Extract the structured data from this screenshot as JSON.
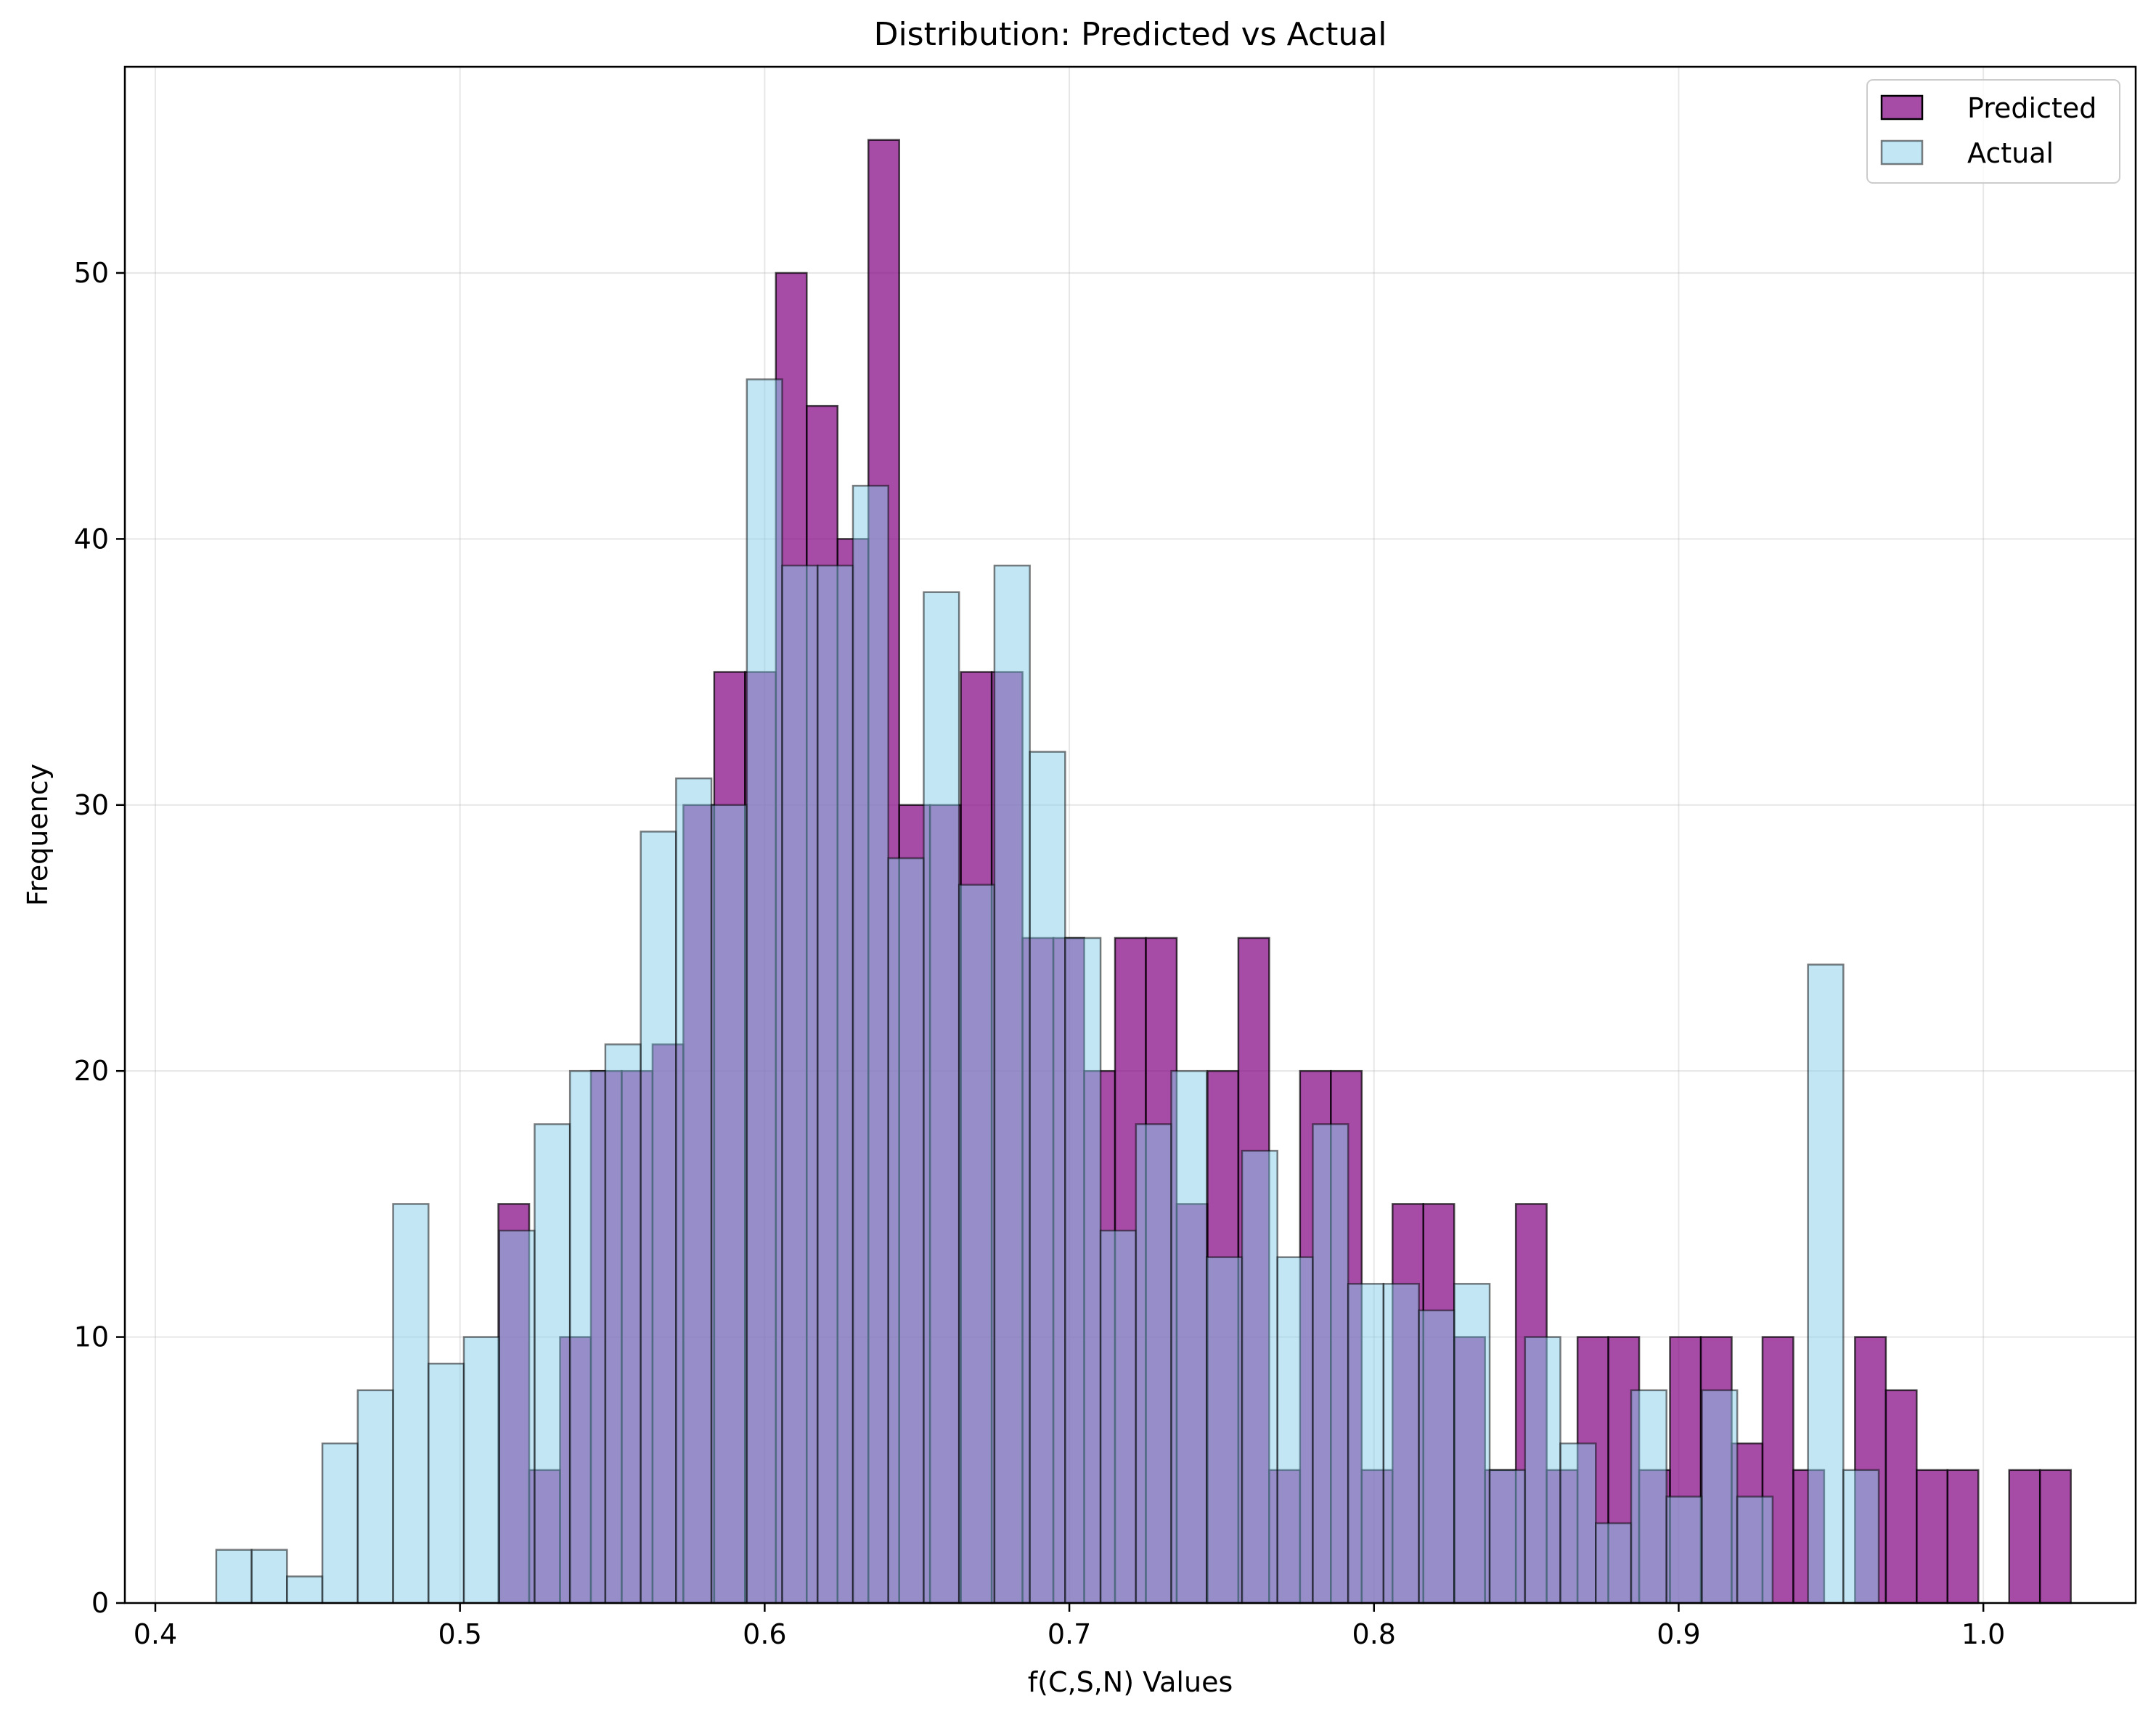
{
  "chart_data": {
    "type": "histogram",
    "title": "Distribution: Predicted vs Actual",
    "xlabel": "f(C,S,N) Values",
    "ylabel": "Frequency",
    "xlim": [
      0.39,
      1.05
    ],
    "ylim": [
      0,
      57.75
    ],
    "xticks": [
      0.4,
      0.5,
      0.6,
      0.7,
      0.8,
      0.9,
      1.0
    ],
    "xtick_labels": [
      "0.4",
      "0.5",
      "0.6",
      "0.7",
      "0.8",
      "0.9",
      "1.0"
    ],
    "yticks": [
      0,
      10,
      20,
      30,
      40,
      50
    ],
    "ytick_labels": [
      "0",
      "10",
      "20",
      "30",
      "40",
      "50"
    ],
    "grid": true,
    "legend_position": "top-right",
    "series": [
      {
        "name": "Predicted",
        "color": "#800080",
        "alpha": 0.7,
        "bin_start": 0.5126,
        "bin_width": 0.01012,
        "values": [
          15,
          5,
          10,
          20,
          20,
          21,
          30,
          35,
          35,
          50,
          45,
          40,
          55,
          30,
          30,
          35,
          35,
          25,
          25,
          20,
          25,
          25,
          15,
          20,
          25,
          5,
          20,
          20,
          5,
          15,
          15,
          10,
          5,
          15,
          5,
          10,
          10,
          5,
          10,
          10,
          6,
          10,
          5,
          0,
          10,
          8,
          5,
          5,
          0,
          5,
          5
        ]
      },
      {
        "name": "Actual",
        "color": "#87ceeb",
        "alpha": 0.5,
        "bin_start": 0.42,
        "bin_width": 0.01161,
        "values": [
          2,
          2,
          1,
          6,
          8,
          15,
          9,
          10,
          14,
          18,
          20,
          21,
          29,
          31,
          30,
          46,
          39,
          39,
          42,
          28,
          38,
          27,
          39,
          32,
          25,
          14,
          18,
          20,
          13,
          17,
          13,
          18,
          12,
          12,
          11,
          12,
          5,
          10,
          6,
          3,
          8,
          4,
          8,
          4,
          0,
          24,
          5
        ]
      }
    ]
  }
}
